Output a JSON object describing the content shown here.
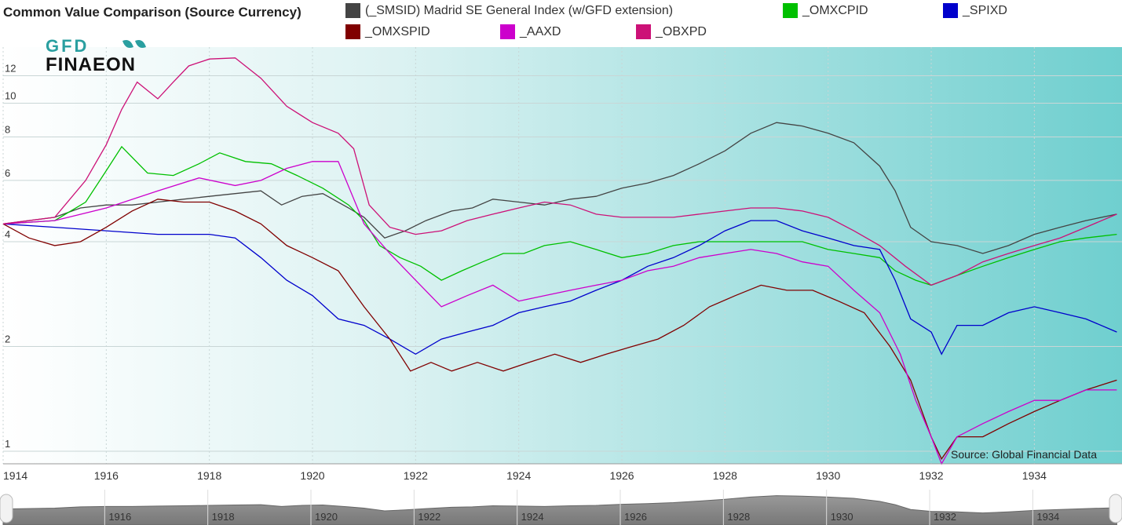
{
  "title": "Common Value Comparison (Source Currency)",
  "logo": {
    "line1": "GFD",
    "line2": "FINAEON"
  },
  "source": "Source: Global Financial Data",
  "chart_data": {
    "type": "line",
    "yscale": "log",
    "xlim": [
      1914,
      1935.7
    ],
    "ylim": [
      0.92,
      14.5
    ],
    "x_ticks": [
      "1914",
      "1916",
      "1918",
      "1920",
      "1922",
      "1924",
      "1926",
      "1928",
      "1930",
      "1932",
      "1934"
    ],
    "y_ticks": [
      "1",
      "2",
      "4",
      "6",
      "8",
      "10",
      "12"
    ],
    "grid": true,
    "legend_position": "top",
    "series": [
      {
        "name": "(_SMSID) Madrid SE General Index (w/GFD extension)",
        "color": "#444444",
        "points": [
          [
            1914,
            4.5
          ],
          [
            1915,
            4.7
          ],
          [
            1915.5,
            5.0
          ],
          [
            1916,
            5.1
          ],
          [
            1916.5,
            5.1
          ],
          [
            1917,
            5.2
          ],
          [
            1917.5,
            5.3
          ],
          [
            1918,
            5.4
          ],
          [
            1918.5,
            5.5
          ],
          [
            1919,
            5.6
          ],
          [
            1919.4,
            5.1
          ],
          [
            1919.8,
            5.4
          ],
          [
            1920.2,
            5.5
          ],
          [
            1920.7,
            5.0
          ],
          [
            1921,
            4.7
          ],
          [
            1921.4,
            4.1
          ],
          [
            1921.8,
            4.3
          ],
          [
            1922.2,
            4.6
          ],
          [
            1922.7,
            4.9
          ],
          [
            1923.1,
            5.0
          ],
          [
            1923.5,
            5.3
          ],
          [
            1924,
            5.2
          ],
          [
            1924.5,
            5.1
          ],
          [
            1925,
            5.3
          ],
          [
            1925.5,
            5.4
          ],
          [
            1926,
            5.7
          ],
          [
            1926.5,
            5.9
          ],
          [
            1927,
            6.2
          ],
          [
            1927.5,
            6.7
          ],
          [
            1928,
            7.3
          ],
          [
            1928.5,
            8.2
          ],
          [
            1929,
            8.8
          ],
          [
            1929.5,
            8.6
          ],
          [
            1930,
            8.2
          ],
          [
            1930.5,
            7.7
          ],
          [
            1931,
            6.6
          ],
          [
            1931.3,
            5.6
          ],
          [
            1931.6,
            4.4
          ],
          [
            1932,
            4.0
          ],
          [
            1932.5,
            3.9
          ],
          [
            1933,
            3.7
          ],
          [
            1933.5,
            3.9
          ],
          [
            1934,
            4.2
          ],
          [
            1934.5,
            4.4
          ],
          [
            1935,
            4.6
          ],
          [
            1935.6,
            4.8
          ]
        ]
      },
      {
        "name": "_OMXCPID",
        "color": "#00c000",
        "points": [
          [
            1914,
            4.5
          ],
          [
            1915,
            4.6
          ],
          [
            1915.6,
            5.2
          ],
          [
            1916,
            6.4
          ],
          [
            1916.3,
            7.5
          ],
          [
            1916.8,
            6.3
          ],
          [
            1917.3,
            6.2
          ],
          [
            1917.8,
            6.7
          ],
          [
            1918.2,
            7.2
          ],
          [
            1918.7,
            6.8
          ],
          [
            1919.2,
            6.7
          ],
          [
            1919.7,
            6.2
          ],
          [
            1920.2,
            5.7
          ],
          [
            1920.7,
            5.1
          ],
          [
            1921,
            4.6
          ],
          [
            1921.3,
            3.9
          ],
          [
            1921.7,
            3.6
          ],
          [
            1922.1,
            3.4
          ],
          [
            1922.5,
            3.1
          ],
          [
            1922.9,
            3.3
          ],
          [
            1923.3,
            3.5
          ],
          [
            1923.7,
            3.7
          ],
          [
            1924.1,
            3.7
          ],
          [
            1924.5,
            3.9
          ],
          [
            1925,
            4.0
          ],
          [
            1925.5,
            3.8
          ],
          [
            1926,
            3.6
          ],
          [
            1926.5,
            3.7
          ],
          [
            1927,
            3.9
          ],
          [
            1927.5,
            4.0
          ],
          [
            1928,
            4.0
          ],
          [
            1928.5,
            4.0
          ],
          [
            1929,
            4.0
          ],
          [
            1929.5,
            4.0
          ],
          [
            1930,
            3.8
          ],
          [
            1930.5,
            3.7
          ],
          [
            1931,
            3.6
          ],
          [
            1931.3,
            3.3
          ],
          [
            1931.7,
            3.1
          ],
          [
            1932,
            3.0
          ],
          [
            1932.5,
            3.2
          ],
          [
            1933,
            3.4
          ],
          [
            1933.5,
            3.6
          ],
          [
            1934,
            3.8
          ],
          [
            1934.5,
            4.0
          ],
          [
            1935,
            4.1
          ],
          [
            1935.6,
            4.2
          ]
        ]
      },
      {
        "name": "_SPIXD",
        "color": "#0000cc",
        "points": [
          [
            1914,
            4.5
          ],
          [
            1915,
            4.4
          ],
          [
            1916,
            4.3
          ],
          [
            1917,
            4.2
          ],
          [
            1918,
            4.2
          ],
          [
            1918.5,
            4.1
          ],
          [
            1919,
            3.6
          ],
          [
            1919.5,
            3.1
          ],
          [
            1920,
            2.8
          ],
          [
            1920.5,
            2.4
          ],
          [
            1921,
            2.3
          ],
          [
            1921.5,
            2.1
          ],
          [
            1922,
            1.9
          ],
          [
            1922.5,
            2.1
          ],
          [
            1923,
            2.2
          ],
          [
            1923.5,
            2.3
          ],
          [
            1924,
            2.5
          ],
          [
            1924.5,
            2.6
          ],
          [
            1925,
            2.7
          ],
          [
            1925.5,
            2.9
          ],
          [
            1926,
            3.1
          ],
          [
            1926.5,
            3.4
          ],
          [
            1927,
            3.6
          ],
          [
            1927.5,
            3.9
          ],
          [
            1928,
            4.3
          ],
          [
            1928.5,
            4.6
          ],
          [
            1929,
            4.6
          ],
          [
            1929.5,
            4.3
          ],
          [
            1930,
            4.1
          ],
          [
            1930.5,
            3.9
          ],
          [
            1931,
            3.8
          ],
          [
            1931.3,
            3.1
          ],
          [
            1931.6,
            2.4
          ],
          [
            1932,
            2.2
          ],
          [
            1932.2,
            1.9
          ],
          [
            1932.5,
            2.3
          ],
          [
            1933,
            2.3
          ],
          [
            1933.5,
            2.5
          ],
          [
            1934,
            2.6
          ],
          [
            1934.5,
            2.5
          ],
          [
            1935,
            2.4
          ],
          [
            1935.6,
            2.2
          ]
        ]
      },
      {
        "name": "_OMXSPID",
        "color": "#800000",
        "points": [
          [
            1914,
            4.5
          ],
          [
            1914.5,
            4.1
          ],
          [
            1915,
            3.9
          ],
          [
            1915.5,
            4.0
          ],
          [
            1916,
            4.4
          ],
          [
            1916.5,
            4.9
          ],
          [
            1917,
            5.3
          ],
          [
            1917.5,
            5.2
          ],
          [
            1918,
            5.2
          ],
          [
            1918.5,
            4.9
          ],
          [
            1919,
            4.5
          ],
          [
            1919.5,
            3.9
          ],
          [
            1920,
            3.6
          ],
          [
            1920.5,
            3.3
          ],
          [
            1921,
            2.6
          ],
          [
            1921.5,
            2.1
          ],
          [
            1921.9,
            1.7
          ],
          [
            1922.3,
            1.8
          ],
          [
            1922.7,
            1.7
          ],
          [
            1923.2,
            1.8
          ],
          [
            1923.7,
            1.7
          ],
          [
            1924.2,
            1.8
          ],
          [
            1924.7,
            1.9
          ],
          [
            1925.2,
            1.8
          ],
          [
            1925.7,
            1.9
          ],
          [
            1926.2,
            2.0
          ],
          [
            1926.7,
            2.1
          ],
          [
            1927.2,
            2.3
          ],
          [
            1927.7,
            2.6
          ],
          [
            1928.2,
            2.8
          ],
          [
            1928.7,
            3.0
          ],
          [
            1929.2,
            2.9
          ],
          [
            1929.7,
            2.9
          ],
          [
            1930.2,
            2.7
          ],
          [
            1930.7,
            2.5
          ],
          [
            1931.2,
            2.0
          ],
          [
            1931.6,
            1.6
          ],
          [
            1932,
            1.1
          ],
          [
            1932.2,
            0.95
          ],
          [
            1932.5,
            1.1
          ],
          [
            1933,
            1.1
          ],
          [
            1933.5,
            1.2
          ],
          [
            1934,
            1.3
          ],
          [
            1934.5,
            1.4
          ],
          [
            1935,
            1.5
          ],
          [
            1935.6,
            1.6
          ]
        ]
      },
      {
        "name": "_AAXD",
        "color": "#cc00cc",
        "points": [
          [
            1914,
            4.5
          ],
          [
            1915,
            4.6
          ],
          [
            1916,
            5.0
          ],
          [
            1917,
            5.6
          ],
          [
            1917.8,
            6.1
          ],
          [
            1918.5,
            5.8
          ],
          [
            1919,
            6.0
          ],
          [
            1919.5,
            6.5
          ],
          [
            1920,
            6.8
          ],
          [
            1920.5,
            6.8
          ],
          [
            1921,
            4.5
          ],
          [
            1921.5,
            3.7
          ],
          [
            1922,
            3.1
          ],
          [
            1922.5,
            2.6
          ],
          [
            1923,
            2.8
          ],
          [
            1923.5,
            3.0
          ],
          [
            1924,
            2.7
          ],
          [
            1924.5,
            2.8
          ],
          [
            1925,
            2.9
          ],
          [
            1925.5,
            3.0
          ],
          [
            1926,
            3.1
          ],
          [
            1926.5,
            3.3
          ],
          [
            1927,
            3.4
          ],
          [
            1927.5,
            3.6
          ],
          [
            1928,
            3.7
          ],
          [
            1928.5,
            3.8
          ],
          [
            1929,
            3.7
          ],
          [
            1929.5,
            3.5
          ],
          [
            1930,
            3.4
          ],
          [
            1930.5,
            2.9
          ],
          [
            1931,
            2.5
          ],
          [
            1931.4,
            1.9
          ],
          [
            1931.7,
            1.4
          ],
          [
            1932,
            1.1
          ],
          [
            1932.2,
            0.92
          ],
          [
            1932.5,
            1.1
          ],
          [
            1933,
            1.2
          ],
          [
            1933.5,
            1.3
          ],
          [
            1934,
            1.4
          ],
          [
            1934.5,
            1.4
          ],
          [
            1935,
            1.5
          ],
          [
            1935.6,
            1.5
          ]
        ]
      },
      {
        "name": "_OBXPD",
        "color": "#cc1177",
        "points": [
          [
            1914,
            4.5
          ],
          [
            1915,
            4.7
          ],
          [
            1915.6,
            6.0
          ],
          [
            1916,
            7.6
          ],
          [
            1916.3,
            9.6
          ],
          [
            1916.6,
            11.5
          ],
          [
            1917,
            10.3
          ],
          [
            1917.3,
            11.5
          ],
          [
            1917.6,
            12.8
          ],
          [
            1918,
            13.4
          ],
          [
            1918.5,
            13.5
          ],
          [
            1919,
            11.8
          ],
          [
            1919.5,
            9.8
          ],
          [
            1920,
            8.8
          ],
          [
            1920.5,
            8.2
          ],
          [
            1920.8,
            7.4
          ],
          [
            1921.1,
            5.1
          ],
          [
            1921.5,
            4.4
          ],
          [
            1922,
            4.2
          ],
          [
            1922.5,
            4.3
          ],
          [
            1923,
            4.6
          ],
          [
            1923.5,
            4.8
          ],
          [
            1924,
            5.0
          ],
          [
            1924.5,
            5.2
          ],
          [
            1925,
            5.1
          ],
          [
            1925.5,
            4.8
          ],
          [
            1926,
            4.7
          ],
          [
            1926.5,
            4.7
          ],
          [
            1927,
            4.7
          ],
          [
            1927.5,
            4.8
          ],
          [
            1928,
            4.9
          ],
          [
            1928.5,
            5.0
          ],
          [
            1929,
            5.0
          ],
          [
            1929.5,
            4.9
          ],
          [
            1930,
            4.7
          ],
          [
            1930.5,
            4.3
          ],
          [
            1931,
            3.9
          ],
          [
            1931.5,
            3.4
          ],
          [
            1932,
            3.0
          ],
          [
            1932.5,
            3.2
          ],
          [
            1933,
            3.5
          ],
          [
            1933.5,
            3.7
          ],
          [
            1934,
            3.9
          ],
          [
            1934.5,
            4.1
          ],
          [
            1935,
            4.4
          ],
          [
            1935.6,
            4.8
          ]
        ]
      }
    ],
    "navigator": {
      "labels": [
        "1916",
        "1918",
        "1920",
        "1922",
        "1924",
        "1926",
        "1928",
        "1930",
        "1932",
        "1934"
      ]
    }
  }
}
